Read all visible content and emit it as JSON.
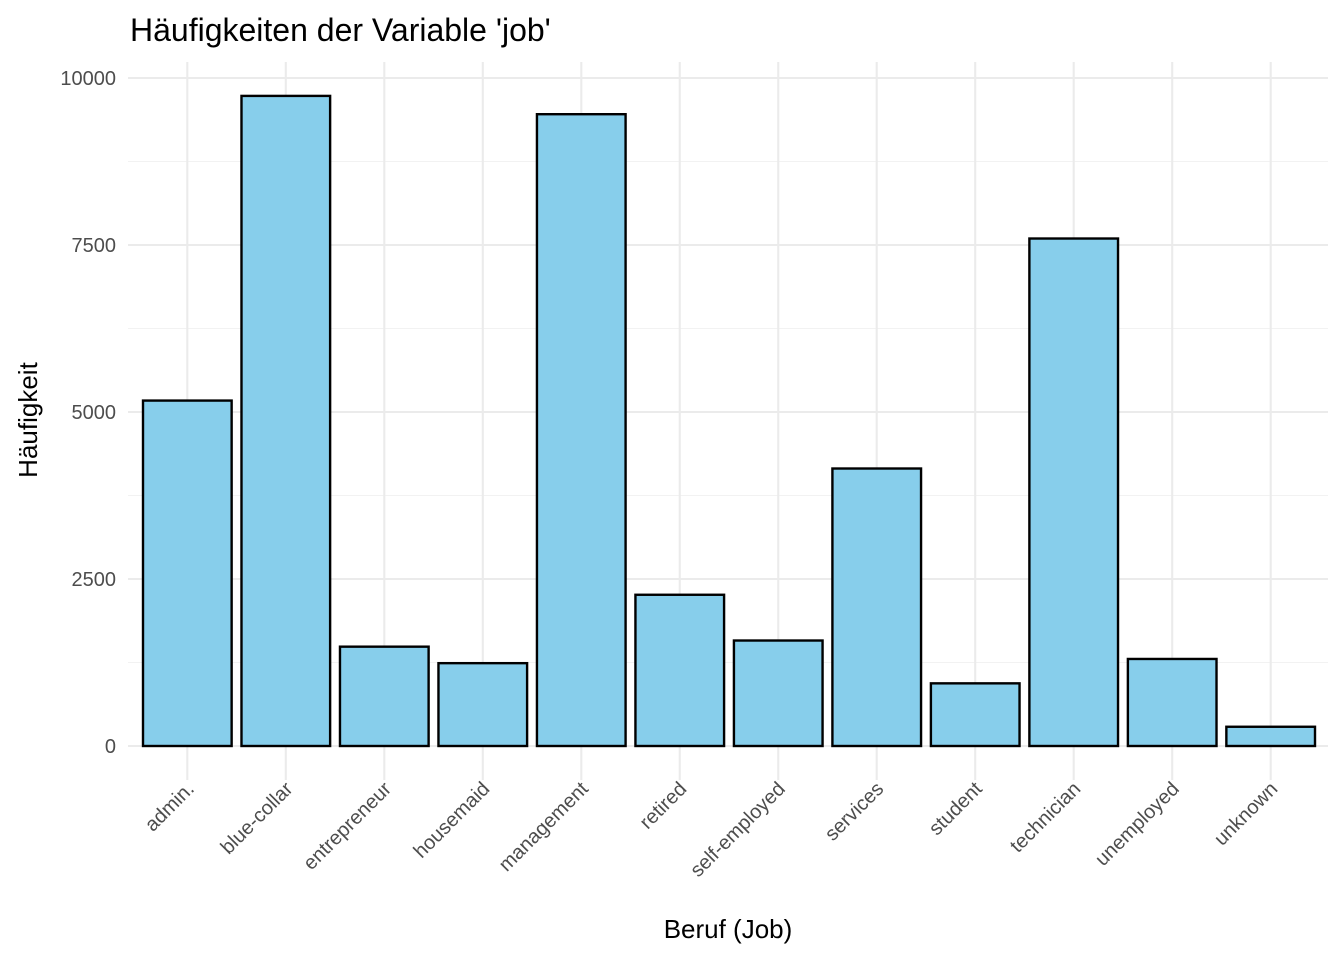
{
  "chart_data": {
    "type": "bar",
    "title": "Häufigkeiten der Variable 'job'",
    "xlabel": "Beruf (Job)",
    "ylabel": "Häufigkeit",
    "categories": [
      "admin.",
      "blue-collar",
      "entrepreneur",
      "housemaid",
      "management",
      "retired",
      "self-employed",
      "services",
      "student",
      "technician",
      "unemployed",
      "unknown"
    ],
    "values": [
      5171,
      9732,
      1487,
      1240,
      9458,
      2264,
      1579,
      4154,
      938,
      7597,
      1303,
      288
    ],
    "ylim": [
      0,
      10000
    ],
    "yticks": [
      0,
      2500,
      5000,
      7500,
      10000
    ],
    "ytick_labels": [
      "0",
      "2500",
      "5000",
      "7500",
      "10000"
    ],
    "grid": true,
    "bar_fill": "#87ceeb",
    "bar_outline": "#000000",
    "legend": "none"
  }
}
